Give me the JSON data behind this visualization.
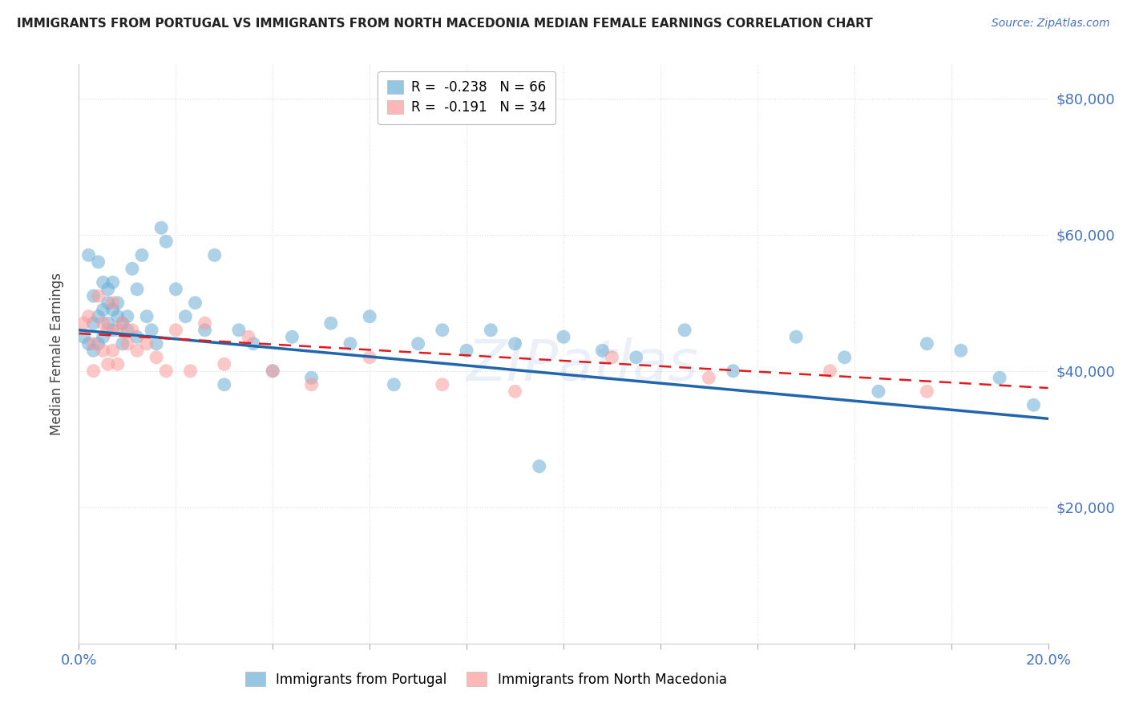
{
  "title": "IMMIGRANTS FROM PORTUGAL VS IMMIGRANTS FROM NORTH MACEDONIA MEDIAN FEMALE EARNINGS CORRELATION CHART",
  "source": "Source: ZipAtlas.com",
  "ylabel": "Median Female Earnings",
  "xlim": [
    0.0,
    0.2
  ],
  "ylim": [
    0,
    85000
  ],
  "yticks": [
    0,
    20000,
    40000,
    60000,
    80000
  ],
  "ytick_labels": [
    "",
    "$20,000",
    "$40,000",
    "$60,000",
    "$80,000"
  ],
  "watermark": "ZIPatlas",
  "portugal_R": -0.238,
  "portugal_N": 66,
  "macedonia_R": -0.191,
  "macedonia_N": 34,
  "portugal_color": "#6baed6",
  "portugal_trend_color": "#2166ac",
  "macedonia_color": "#fb9a99",
  "macedonia_trend_color": "#e31a1c",
  "portugal_x": [
    0.001,
    0.002,
    0.002,
    0.003,
    0.003,
    0.003,
    0.004,
    0.004,
    0.004,
    0.005,
    0.005,
    0.005,
    0.006,
    0.006,
    0.006,
    0.007,
    0.007,
    0.007,
    0.008,
    0.008,
    0.009,
    0.009,
    0.01,
    0.01,
    0.011,
    0.012,
    0.012,
    0.013,
    0.014,
    0.015,
    0.016,
    0.017,
    0.018,
    0.02,
    0.022,
    0.024,
    0.026,
    0.028,
    0.03,
    0.033,
    0.036,
    0.04,
    0.044,
    0.048,
    0.052,
    0.056,
    0.06,
    0.065,
    0.07,
    0.075,
    0.08,
    0.085,
    0.09,
    0.095,
    0.1,
    0.108,
    0.115,
    0.125,
    0.135,
    0.148,
    0.158,
    0.165,
    0.175,
    0.182,
    0.19,
    0.197
  ],
  "portugal_y": [
    45000,
    57000,
    44000,
    51000,
    47000,
    43000,
    56000,
    48000,
    44000,
    53000,
    49000,
    45000,
    52000,
    47000,
    50000,
    49000,
    46000,
    53000,
    50000,
    48000,
    47000,
    44000,
    48000,
    46000,
    55000,
    52000,
    45000,
    57000,
    48000,
    46000,
    44000,
    61000,
    59000,
    52000,
    48000,
    50000,
    46000,
    57000,
    38000,
    46000,
    44000,
    40000,
    45000,
    39000,
    47000,
    44000,
    48000,
    38000,
    44000,
    46000,
    43000,
    46000,
    44000,
    26000,
    45000,
    43000,
    42000,
    46000,
    40000,
    45000,
    42000,
    37000,
    44000,
    43000,
    39000,
    35000
  ],
  "macedonia_x": [
    0.001,
    0.002,
    0.003,
    0.003,
    0.004,
    0.005,
    0.005,
    0.006,
    0.006,
    0.007,
    0.007,
    0.008,
    0.008,
    0.009,
    0.01,
    0.011,
    0.012,
    0.014,
    0.016,
    0.018,
    0.02,
    0.023,
    0.026,
    0.03,
    0.035,
    0.04,
    0.048,
    0.06,
    0.075,
    0.09,
    0.11,
    0.13,
    0.155,
    0.175
  ],
  "macedonia_y": [
    47000,
    48000,
    40000,
    44000,
    51000,
    47000,
    43000,
    46000,
    41000,
    50000,
    43000,
    46000,
    41000,
    47000,
    44000,
    46000,
    43000,
    44000,
    42000,
    40000,
    46000,
    40000,
    47000,
    41000,
    45000,
    40000,
    38000,
    42000,
    38000,
    37000,
    42000,
    39000,
    40000,
    37000
  ],
  "trend_portugal": [
    46000,
    33000
  ],
  "trend_macedonia": [
    45500,
    37500
  ],
  "title_color": "#222222",
  "source_color": "#4472c4",
  "axis_color": "#4472c4",
  "grid_color": "#dddddd",
  "background_color": "#ffffff"
}
